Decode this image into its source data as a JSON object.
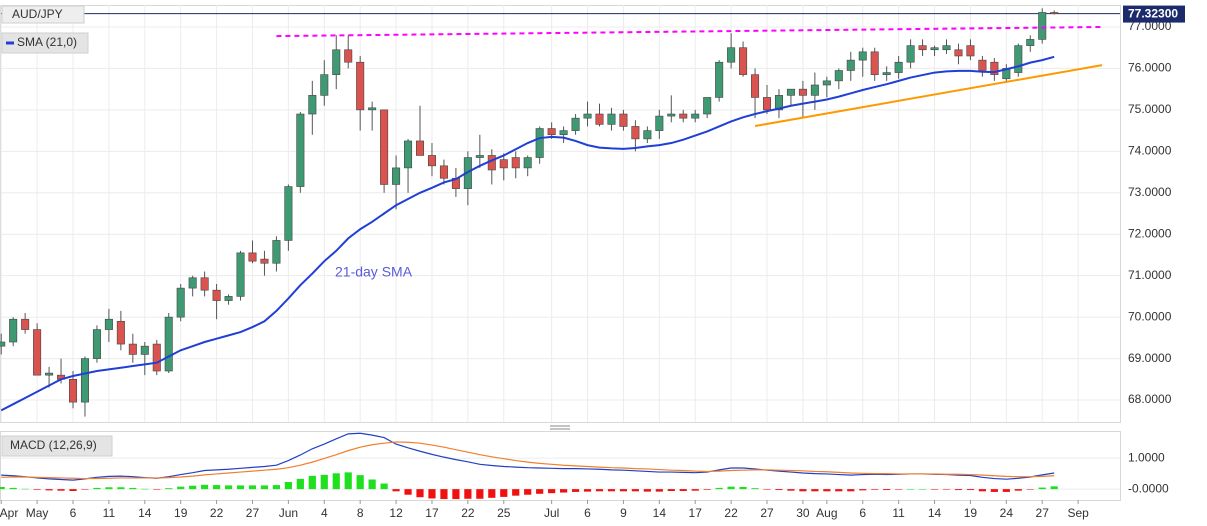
{
  "chart_data": [
    {
      "type": "candlestick",
      "title": "AUD/JPY",
      "categories": [
        "Apr",
        null,
        null,
        "May",
        null,
        null,
        "6",
        null,
        null,
        "11",
        null,
        null,
        "14",
        null,
        null,
        "19",
        null,
        null,
        "22",
        null,
        null,
        "27",
        null,
        null,
        "Jun",
        null,
        null,
        "4",
        null,
        null,
        "8",
        null,
        null,
        "12",
        null,
        null,
        "17",
        null,
        null,
        "22",
        null,
        null,
        "25",
        null,
        null,
        null,
        "Jul",
        null,
        null,
        "6",
        null,
        null,
        "9",
        null,
        null,
        "14",
        null,
        null,
        "17",
        null,
        null,
        "22",
        null,
        null,
        "27",
        null,
        null,
        "30",
        null,
        "Aug",
        null,
        null,
        "6",
        null,
        null,
        "11",
        null,
        null,
        "14",
        null,
        null,
        "19",
        null,
        null,
        "24",
        null,
        null,
        "27",
        null,
        null,
        "Sep",
        null,
        null,
        null
      ],
      "open": [
        69.3,
        69.4,
        69.95,
        69.7,
        68.6,
        68.6,
        68.5,
        67.95,
        69.0,
        69.7,
        69.9,
        69.35,
        69.1,
        69.35,
        68.7,
        70.0,
        70.7,
        70.95,
        70.65,
        70.4,
        70.5,
        71.55,
        71.4,
        71.3,
        71.85,
        73.15,
        74.9,
        75.35,
        75.85,
        76.45,
        76.15,
        75.0,
        75.0,
        73.2,
        73.6,
        74.25,
        73.9,
        73.65,
        73.35,
        73.1,
        73.85,
        73.9,
        73.8,
        73.85,
        73.6,
        73.85,
        74.55,
        74.4,
        74.5,
        74.8,
        74.9,
        74.65,
        74.9,
        74.6,
        74.3,
        74.5,
        74.85,
        74.9,
        74.8,
        74.9,
        75.3,
        76.15,
        76.5,
        75.85,
        75.3,
        75.0,
        75.35,
        75.5,
        75.35,
        75.6,
        75.7,
        75.95,
        76.2,
        76.4,
        75.85,
        75.9,
        76.15,
        76.55,
        76.45,
        76.45,
        76.45,
        76.55,
        76.2,
        76.15,
        75.75,
        75.9,
        76.55,
        76.7,
        77.35,
        null,
        null,
        null,
        null,
        null
      ],
      "high": [
        69.6,
        70.0,
        70.1,
        69.85,
        68.8,
        69.0,
        68.7,
        69.05,
        69.8,
        70.2,
        70.15,
        69.6,
        69.4,
        69.45,
        70.1,
        70.8,
        71.0,
        71.1,
        70.8,
        70.55,
        71.6,
        71.85,
        71.6,
        71.95,
        73.2,
        74.95,
        75.7,
        76.2,
        76.8,
        76.8,
        76.3,
        75.2,
        75.0,
        73.9,
        74.3,
        75.1,
        74.2,
        73.8,
        73.6,
        74.0,
        74.4,
        74.05,
        73.95,
        74.0,
        73.9,
        74.6,
        74.7,
        74.6,
        74.9,
        75.2,
        75.15,
        75.05,
        75.0,
        74.75,
        74.6,
        75.0,
        75.35,
        75.0,
        75.0,
        75.3,
        76.2,
        76.85,
        76.65,
        76.0,
        75.6,
        75.5,
        75.5,
        75.7,
        75.9,
        75.8,
        76.0,
        76.4,
        76.5,
        76.5,
        76.05,
        76.3,
        76.7,
        76.7,
        76.55,
        76.7,
        76.6,
        76.7,
        76.3,
        76.25,
        76.1,
        76.6,
        76.8,
        77.45,
        77.4,
        null,
        null,
        null,
        null,
        null
      ],
      "low": [
        69.1,
        69.3,
        69.6,
        68.6,
        68.3,
        68.4,
        67.8,
        67.6,
        68.9,
        69.4,
        69.2,
        68.9,
        68.6,
        68.6,
        68.65,
        69.9,
        70.5,
        70.5,
        69.95,
        70.3,
        70.4,
        71.3,
        71.0,
        71.1,
        71.6,
        73.0,
        74.4,
        75.1,
        75.5,
        76.0,
        74.5,
        74.5,
        73.0,
        72.6,
        73.0,
        73.9,
        73.4,
        73.2,
        72.9,
        72.7,
        73.6,
        73.2,
        73.3,
        73.35,
        73.4,
        73.7,
        74.3,
        74.2,
        74.4,
        74.6,
        74.6,
        74.5,
        74.5,
        74.0,
        74.2,
        74.3,
        74.7,
        74.7,
        74.7,
        74.8,
        75.2,
        76.0,
        75.8,
        74.8,
        74.9,
        74.8,
        75.1,
        74.8,
        75.0,
        75.3,
        75.5,
        75.7,
        75.8,
        75.7,
        75.7,
        75.75,
        76.0,
        76.3,
        76.3,
        76.35,
        76.1,
        76.2,
        75.8,
        75.7,
        75.65,
        75.8,
        76.4,
        76.6,
        77.3,
        null,
        null,
        null,
        null,
        null
      ],
      "close": [
        69.4,
        69.95,
        69.7,
        68.6,
        68.65,
        68.5,
        67.95,
        69.0,
        69.7,
        69.95,
        69.35,
        69.1,
        69.3,
        68.7,
        70.0,
        70.7,
        70.95,
        70.65,
        70.4,
        70.5,
        71.55,
        71.35,
        71.3,
        71.85,
        73.15,
        74.9,
        75.35,
        75.85,
        76.45,
        76.15,
        75.0,
        75.05,
        73.2,
        73.6,
        74.25,
        73.9,
        73.65,
        73.35,
        73.1,
        73.85,
        73.9,
        73.55,
        73.6,
        73.6,
        73.85,
        74.55,
        74.4,
        74.5,
        74.8,
        74.9,
        74.65,
        74.9,
        74.6,
        74.3,
        74.5,
        74.85,
        74.9,
        74.8,
        74.9,
        75.3,
        76.15,
        76.5,
        75.85,
        75.3,
        75.0,
        75.35,
        75.5,
        75.35,
        75.6,
        75.7,
        75.95,
        76.2,
        76.4,
        75.85,
        75.9,
        76.15,
        76.55,
        76.45,
        76.5,
        76.55,
        76.3,
        76.3,
        75.95,
        75.85,
        76.0,
        76.55,
        76.7,
        77.35,
        77.32,
        null,
        null,
        null,
        null,
        null
      ],
      "up_color": "#3f9a74",
      "down_color": "#d9534f",
      "series": [
        {
          "name": "SMA (21,0)",
          "color": "#1f3fd6",
          "values": [
            67.75,
            67.9,
            68.05,
            68.2,
            68.35,
            68.5,
            68.58,
            68.64,
            68.7,
            68.74,
            68.78,
            68.82,
            68.86,
            68.9,
            69.05,
            69.2,
            69.3,
            69.4,
            69.48,
            69.56,
            69.64,
            69.76,
            69.9,
            70.15,
            70.45,
            70.77,
            71.05,
            71.35,
            71.6,
            71.9,
            72.12,
            72.3,
            72.5,
            72.7,
            72.85,
            73.0,
            73.12,
            73.25,
            73.33,
            73.5,
            73.65,
            73.78,
            73.9,
            74.05,
            74.2,
            74.32,
            74.35,
            74.33,
            74.25,
            74.15,
            74.09,
            74.07,
            74.06,
            74.08,
            74.12,
            74.15,
            74.2,
            74.28,
            74.38,
            74.48,
            74.6,
            74.72,
            74.82,
            74.9,
            74.97,
            75.03,
            75.1,
            75.15,
            75.2,
            75.25,
            75.32,
            75.4,
            75.48,
            75.55,
            75.62,
            75.7,
            75.78,
            75.84,
            75.9,
            75.93,
            75.94,
            75.94,
            75.92,
            75.91,
            75.98,
            76.05,
            76.14,
            76.2,
            76.28,
            null,
            null,
            null,
            null,
            null
          ]
        }
      ],
      "annotation": "21-day SMA",
      "trendlines": [
        {
          "color": "#ff00ff",
          "dashed": true,
          "x": [
            23,
            92
          ],
          "values": [
            76.78,
            77.0
          ]
        },
        {
          "color": "#ff9900",
          "dashed": false,
          "x": [
            63,
            92
          ],
          "values": [
            74.61,
            76.08
          ]
        }
      ],
      "last_price": {
        "value": 77.323,
        "label": "77.32300"
      },
      "ylim": [
        67.47,
        77.53
      ],
      "yticks": [
        {
          "value": 68,
          "label": "68.0000"
        },
        {
          "value": 69,
          "label": "69.0000"
        },
        {
          "value": 70,
          "label": "70.0000"
        },
        {
          "value": 71,
          "label": "71.0000"
        },
        {
          "value": 72,
          "label": "72.0000"
        },
        {
          "value": 73,
          "label": "73.0000"
        },
        {
          "value": 74,
          "label": "74.0000"
        },
        {
          "value": 75,
          "label": "75.0000"
        },
        {
          "value": 76,
          "label": "76.0000"
        },
        {
          "value": 77,
          "label": "77.0000"
        }
      ],
      "grid": true
    },
    {
      "type": "macd",
      "title": "MACD (12,26,9)",
      "series": [
        {
          "color": "#2140c8",
          "values": [
            0.45,
            0.43,
            0.4,
            0.36,
            0.33,
            0.31,
            0.29,
            0.33,
            0.38,
            0.41,
            0.42,
            0.4,
            0.37,
            0.35,
            0.4,
            0.47,
            0.53,
            0.6,
            0.62,
            0.64,
            0.67,
            0.7,
            0.73,
            0.77,
            0.92,
            1.1,
            1.3,
            1.45,
            1.62,
            1.78,
            1.8,
            1.74,
            1.66,
            1.45,
            1.33,
            1.22,
            1.12,
            1.03,
            0.95,
            0.88,
            0.8,
            0.76,
            0.73,
            0.71,
            0.69,
            0.68,
            0.67,
            0.66,
            0.66,
            0.65,
            0.64,
            0.62,
            0.61,
            0.59,
            0.57,
            0.55,
            0.55,
            0.54,
            0.53,
            0.55,
            0.62,
            0.68,
            0.68,
            0.65,
            0.61,
            0.58,
            0.55,
            0.52,
            0.5,
            0.49,
            0.47,
            0.45,
            0.47,
            0.48,
            0.47,
            0.48,
            0.49,
            0.49,
            0.48,
            0.47,
            0.45,
            0.44,
            0.38,
            0.34,
            0.32,
            0.35,
            0.39,
            0.46,
            0.52,
            null,
            null,
            null,
            null,
            null
          ]
        },
        {
          "color": "#f07f2e",
          "values": [
            0.38,
            0.39,
            0.39,
            0.38,
            0.37,
            0.36,
            0.35,
            0.34,
            0.34,
            0.35,
            0.36,
            0.36,
            0.36,
            0.36,
            0.37,
            0.39,
            0.42,
            0.46,
            0.49,
            0.52,
            0.55,
            0.58,
            0.61,
            0.64,
            0.69,
            0.77,
            0.87,
            0.99,
            1.11,
            1.24,
            1.35,
            1.43,
            1.48,
            1.52,
            1.51,
            1.48,
            1.42,
            1.35,
            1.27,
            1.19,
            1.11,
            1.04,
            0.98,
            0.92,
            0.87,
            0.83,
            0.8,
            0.77,
            0.75,
            0.73,
            0.71,
            0.69,
            0.68,
            0.66,
            0.65,
            0.63,
            0.61,
            0.6,
            0.58,
            0.57,
            0.58,
            0.6,
            0.61,
            0.62,
            0.62,
            0.61,
            0.6,
            0.59,
            0.57,
            0.56,
            0.54,
            0.52,
            0.51,
            0.5,
            0.5,
            0.49,
            0.49,
            0.49,
            0.49,
            0.48,
            0.48,
            0.47,
            0.45,
            0.43,
            0.41,
            0.4,
            0.4,
            0.41,
            0.43,
            null,
            null,
            null,
            null,
            null
          ]
        }
      ],
      "histogram": {
        "positive_color": "#1ee01e",
        "negative_color": "#f01010",
        "values": [
          0.07,
          0.04,
          0.01,
          -0.02,
          -0.04,
          -0.05,
          -0.06,
          -0.01,
          0.04,
          0.06,
          0.06,
          0.04,
          0.01,
          -0.01,
          0.03,
          0.08,
          0.11,
          0.14,
          0.13,
          0.12,
          0.12,
          0.12,
          0.12,
          0.13,
          0.23,
          0.33,
          0.43,
          0.46,
          0.51,
          0.54,
          0.45,
          0.31,
          0.18,
          -0.07,
          -0.18,
          -0.26,
          -0.3,
          -0.32,
          -0.32,
          -0.31,
          -0.31,
          -0.28,
          -0.25,
          -0.21,
          -0.18,
          -0.15,
          -0.13,
          -0.11,
          -0.09,
          -0.08,
          -0.07,
          -0.07,
          -0.07,
          -0.07,
          -0.08,
          -0.08,
          -0.06,
          -0.06,
          -0.05,
          -0.02,
          0.04,
          0.08,
          0.07,
          0.03,
          -0.01,
          -0.03,
          -0.05,
          -0.07,
          -0.07,
          -0.07,
          -0.07,
          -0.07,
          -0.04,
          -0.02,
          -0.03,
          -0.01,
          0.0,
          0.0,
          -0.01,
          -0.01,
          -0.03,
          -0.03,
          -0.07,
          -0.09,
          -0.09,
          -0.05,
          -0.01,
          0.05,
          0.09,
          null,
          null,
          null,
          null,
          null
        ]
      },
      "ylim": [
        -0.35,
        1.84
      ],
      "yticks": [
        {
          "value": 1,
          "label": "1.0000"
        },
        {
          "value": 0,
          "label": "-0.0000"
        }
      ],
      "grid": true
    }
  ]
}
